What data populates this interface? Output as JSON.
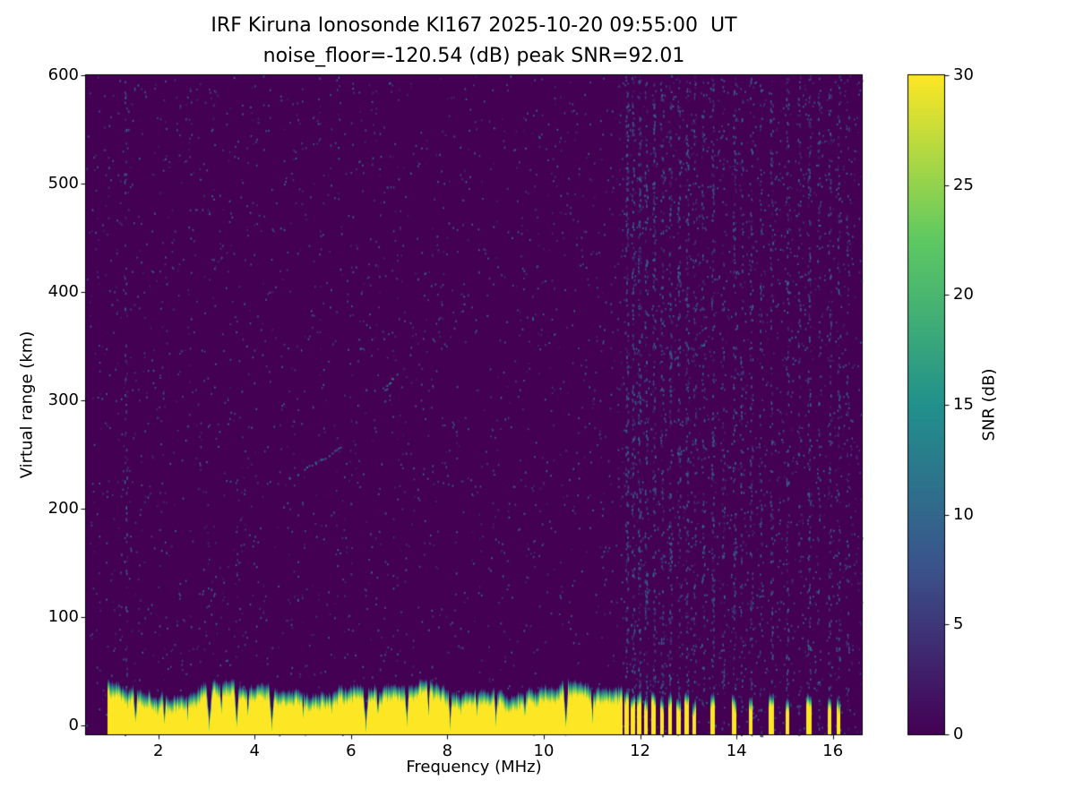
{
  "chart_data": {
    "type": "heatmap",
    "title": "IRF Kiruna Ionosonde KI167 2025-10-20 09:55:00  UT",
    "subtitle": "noise_floor=-120.54 (dB) peak SNR=92.01",
    "xlabel": "Frequency (MHz)",
    "ylabel": "Virtual range (km)",
    "colorbar_label": "SNR (dB)",
    "station": "KI167",
    "timestamp": "2025-10-20 09:55:00 UT",
    "noise_floor_db": -120.54,
    "peak_snr_db": 92.01,
    "xlim": [
      0.5,
      16.6
    ],
    "ylim": [
      -8,
      600
    ],
    "clim": [
      0,
      30
    ],
    "xticks": [
      2,
      4,
      6,
      8,
      10,
      12,
      14,
      16
    ],
    "yticks": [
      0,
      100,
      200,
      300,
      400,
      500,
      600
    ],
    "colorbar_ticks": [
      0,
      5,
      10,
      15,
      20,
      25,
      30
    ],
    "colormap": "viridis",
    "colormap_stops": [
      {
        "t": 0.0,
        "color": "#440154"
      },
      {
        "t": 0.25,
        "color": "#3b528b"
      },
      {
        "t": 0.5,
        "color": "#21918c"
      },
      {
        "t": 0.75,
        "color": "#5ec962"
      },
      {
        "t": 1.0,
        "color": "#fde725"
      }
    ],
    "ground_clutter": {
      "freq_start": 0.95,
      "freq_end": 11.62,
      "mean_top_km": 32,
      "max_snr_db": 30,
      "notches": [
        {
          "freq": 1.52,
          "width": 0.06,
          "depth": 10
        },
        {
          "freq": 2.12,
          "width": 0.05,
          "depth": 8
        },
        {
          "freq": 2.6,
          "width": 0.05,
          "depth": 14
        },
        {
          "freq": 3.05,
          "width": 0.06,
          "depth": 4
        },
        {
          "freq": 3.3,
          "width": 0.04,
          "depth": 16
        },
        {
          "freq": 3.62,
          "width": 0.05,
          "depth": 6
        },
        {
          "freq": 3.85,
          "width": 0.04,
          "depth": 14
        },
        {
          "freq": 4.35,
          "width": 0.06,
          "depth": 5
        },
        {
          "freq": 5.0,
          "width": 0.04,
          "depth": 15
        },
        {
          "freq": 5.6,
          "width": 0.04,
          "depth": 18
        },
        {
          "freq": 6.3,
          "width": 0.06,
          "depth": 4
        },
        {
          "freq": 6.55,
          "width": 0.04,
          "depth": 12
        },
        {
          "freq": 7.15,
          "width": 0.05,
          "depth": 8
        },
        {
          "freq": 7.6,
          "width": 0.04,
          "depth": 16
        },
        {
          "freq": 8.05,
          "width": 0.05,
          "depth": 6
        },
        {
          "freq": 8.6,
          "width": 0.04,
          "depth": 14
        },
        {
          "freq": 9.0,
          "width": 0.05,
          "depth": 8
        },
        {
          "freq": 9.6,
          "width": 0.04,
          "depth": 12
        },
        {
          "freq": 10.45,
          "width": 0.05,
          "depth": 6
        },
        {
          "freq": 11.0,
          "width": 0.04,
          "depth": 10
        }
      ]
    },
    "rfi_stripes": [
      {
        "freq": 11.72,
        "width": 0.07,
        "top_km": 30
      },
      {
        "freq": 11.85,
        "width": 0.06,
        "top_km": 26
      },
      {
        "freq": 11.98,
        "width": 0.07,
        "top_km": 30
      },
      {
        "freq": 12.12,
        "width": 0.06,
        "top_km": 24
      },
      {
        "freq": 12.28,
        "width": 0.07,
        "top_km": 28
      },
      {
        "freq": 12.45,
        "width": 0.06,
        "top_km": 25
      },
      {
        "freq": 12.62,
        "width": 0.07,
        "top_km": 28
      },
      {
        "freq": 12.8,
        "width": 0.06,
        "top_km": 24
      },
      {
        "freq": 12.97,
        "width": 0.07,
        "top_km": 27
      },
      {
        "freq": 13.12,
        "width": 0.05,
        "top_km": 22
      },
      {
        "freq": 13.5,
        "width": 0.08,
        "top_km": 28
      },
      {
        "freq": 13.95,
        "width": 0.07,
        "top_km": 25
      },
      {
        "freq": 14.3,
        "width": 0.06,
        "top_km": 24
      },
      {
        "freq": 14.72,
        "width": 0.08,
        "top_km": 27
      },
      {
        "freq": 15.05,
        "width": 0.06,
        "top_km": 23
      },
      {
        "freq": 15.5,
        "width": 0.09,
        "top_km": 27
      },
      {
        "freq": 15.93,
        "width": 0.07,
        "top_km": 25
      },
      {
        "freq": 16.12,
        "width": 0.05,
        "top_km": 22
      }
    ],
    "echo_trace": [
      {
        "f1": 4.7,
        "r1": 228,
        "f2": 5.9,
        "r2": 260,
        "snr": 9
      },
      {
        "f1": 6.65,
        "r1": 308,
        "f2": 6.95,
        "r2": 326,
        "snr": 11
      }
    ],
    "noise_speckle": {
      "base_count": 3200,
      "snr_min": 2,
      "snr_max": 11,
      "seed": 1337,
      "right_region": {
        "from": 11.6,
        "count": 900
      }
    },
    "noise_columns": [
      {
        "freq": 1.32,
        "density": 0.1
      },
      {
        "freq": 11.72,
        "density": 0.22
      },
      {
        "freq": 11.85,
        "density": 0.18
      },
      {
        "freq": 11.98,
        "density": 0.2
      },
      {
        "freq": 12.12,
        "density": 0.16
      },
      {
        "freq": 12.28,
        "density": 0.2
      },
      {
        "freq": 12.45,
        "density": 0.15
      },
      {
        "freq": 12.62,
        "density": 0.18
      },
      {
        "freq": 12.8,
        "density": 0.14
      },
      {
        "freq": 12.97,
        "density": 0.17
      },
      {
        "freq": 13.12,
        "density": 0.12
      },
      {
        "freq": 13.3,
        "density": 0.1
      },
      {
        "freq": 13.5,
        "density": 0.16
      },
      {
        "freq": 13.72,
        "density": 0.1
      },
      {
        "freq": 13.95,
        "density": 0.15
      },
      {
        "freq": 14.1,
        "density": 0.09
      },
      {
        "freq": 14.3,
        "density": 0.14
      },
      {
        "freq": 14.5,
        "density": 0.09
      },
      {
        "freq": 14.72,
        "density": 0.15
      },
      {
        "freq": 15.05,
        "density": 0.13
      },
      {
        "freq": 15.3,
        "density": 0.08
      },
      {
        "freq": 15.5,
        "density": 0.14
      },
      {
        "freq": 15.7,
        "density": 0.08
      },
      {
        "freq": 15.93,
        "density": 0.13
      },
      {
        "freq": 16.12,
        "density": 0.1
      },
      {
        "freq": 16.3,
        "density": 0.08
      }
    ]
  }
}
